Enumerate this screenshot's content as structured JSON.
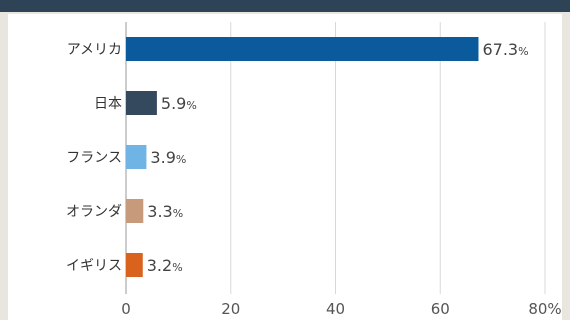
{
  "chart_data": {
    "type": "bar",
    "orientation": "horizontal",
    "title": "",
    "xlabel": "",
    "ylabel": "",
    "categories": [
      "アメリカ",
      "日本",
      "フランス",
      "オランダ",
      "イギリス"
    ],
    "values": [
      67.3,
      5.9,
      3.9,
      3.3,
      3.2
    ],
    "value_labels": [
      "67.3",
      "5.9",
      "3.9",
      "3.3",
      "3.2"
    ],
    "value_unit": "%",
    "bar_colors": [
      "#0a5a9c",
      "#34495e",
      "#6fb4e4",
      "#c89a7c",
      "#d9631e"
    ],
    "xlim": [
      0,
      80
    ],
    "x_ticks": [
      0,
      20,
      40,
      60,
      80
    ],
    "x_tick_labels": [
      "0",
      "20",
      "40",
      "60",
      "80%"
    ],
    "grid": true,
    "legend": "none"
  }
}
